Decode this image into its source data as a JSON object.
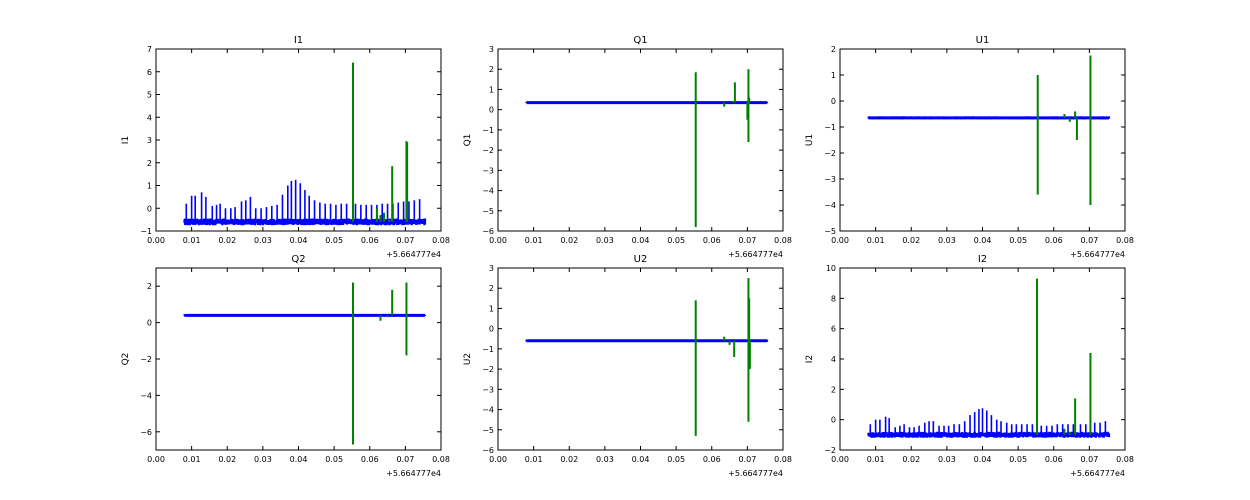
{
  "figure": {
    "background": "#ffffff"
  },
  "colors": {
    "blue": "#0000ff",
    "green": "#007f00",
    "axis": "#000000"
  },
  "chart_data": [
    {
      "type": "line",
      "title": "I1",
      "ylabel": "I1",
      "xlabel": "",
      "offset_label": "+5.664777e4",
      "xlim": [
        0.0,
        0.08
      ],
      "ylim": [
        -1,
        7
      ],
      "xticks": [
        "0.00",
        "0.01",
        "0.02",
        "0.03",
        "0.04",
        "0.05",
        "0.06",
        "0.07",
        "0.08"
      ],
      "yticks": [
        "−1",
        "0",
        "1",
        "2",
        "3",
        "4",
        "5",
        "6",
        "7"
      ],
      "grid": false,
      "series": [
        {
          "color": "#0000ff",
          "baseline": -0.6,
          "band": 0.15,
          "x_range": [
            0.008,
            0.0755
          ],
          "spikes": [
            [
              0.0085,
              0.2
            ],
            [
              0.01,
              0.55
            ],
            [
              0.011,
              0.55
            ],
            [
              0.0128,
              0.7
            ],
            [
              0.014,
              0.5
            ],
            [
              0.0158,
              0.1
            ],
            [
              0.017,
              0.15
            ],
            [
              0.018,
              0.2
            ],
            [
              0.0195,
              0.0
            ],
            [
              0.021,
              0.0
            ],
            [
              0.0222,
              0.05
            ],
            [
              0.024,
              0.3
            ],
            [
              0.0252,
              0.35
            ],
            [
              0.0265,
              0.5
            ],
            [
              0.028,
              0.0
            ],
            [
              0.0295,
              0.0
            ],
            [
              0.031,
              0.05
            ],
            [
              0.0325,
              0.1
            ],
            [
              0.034,
              0.15
            ],
            [
              0.0355,
              0.6
            ],
            [
              0.037,
              1.0
            ],
            [
              0.038,
              1.2
            ],
            [
              0.0392,
              1.25
            ],
            [
              0.0405,
              1.1
            ],
            [
              0.0418,
              0.8
            ],
            [
              0.043,
              0.55
            ],
            [
              0.0445,
              0.35
            ],
            [
              0.046,
              0.25
            ],
            [
              0.0475,
              0.2
            ],
            [
              0.049,
              0.2
            ],
            [
              0.0505,
              0.15
            ],
            [
              0.052,
              0.2
            ],
            [
              0.0535,
              0.2
            ],
            [
              0.056,
              0.2
            ],
            [
              0.0575,
              0.15
            ],
            [
              0.059,
              0.15
            ],
            [
              0.0605,
              0.15
            ],
            [
              0.062,
              0.15
            ],
            [
              0.0635,
              0.2
            ],
            [
              0.065,
              0.2
            ],
            [
              0.0665,
              0.2
            ],
            [
              0.068,
              0.25
            ],
            [
              0.0695,
              0.3
            ],
            [
              0.071,
              0.3
            ],
            [
              0.0725,
              0.35
            ],
            [
              0.074,
              0.4
            ]
          ],
          "dips": []
        },
        {
          "color": "#007f00",
          "spikes": [
            [
              0.0553,
              6.4
            ],
            [
              0.0663,
              1.85
            ],
            [
              0.0703,
              2.95
            ],
            [
              0.0705,
              2.9
            ]
          ],
          "dips": [
            [
              0.063,
              -0.3
            ],
            [
              0.0655,
              -0.5
            ],
            [
              0.07,
              -0.6
            ]
          ],
          "wiggles": [
            [
              0.062,
              0.0
            ],
            [
              0.064,
              -0.2
            ]
          ]
        }
      ]
    },
    {
      "type": "line",
      "title": "Q1",
      "ylabel": "Q1",
      "xlabel": "",
      "offset_label": "+5.664777e4",
      "xlim": [
        0.0,
        0.08
      ],
      "ylim": [
        -6,
        3
      ],
      "xticks": [
        "0.00",
        "0.01",
        "0.02",
        "0.03",
        "0.04",
        "0.05",
        "0.06",
        "0.07",
        "0.08"
      ],
      "yticks": [
        "−6",
        "−5",
        "−4",
        "−3",
        "−2",
        "−1",
        "0",
        "1",
        "2",
        "3"
      ],
      "grid": false,
      "series": [
        {
          "color": "#0000ff",
          "baseline": 0.35,
          "band": 0.06,
          "x_range": [
            0.008,
            0.0755
          ],
          "spikes": [],
          "dips": []
        },
        {
          "color": "#007f00",
          "spikes": [
            [
              0.0555,
              1.85
            ],
            [
              0.0665,
              1.35
            ],
            [
              0.0703,
              2.0
            ],
            [
              0.0705,
              0.6
            ]
          ],
          "dips": [
            [
              0.0555,
              -5.8
            ],
            [
              0.0703,
              -1.6
            ],
            [
              0.07,
              -0.5
            ]
          ],
          "wiggles": [
            [
              0.0635,
              0.15
            ],
            [
              0.066,
              0.4
            ]
          ]
        }
      ]
    },
    {
      "type": "line",
      "title": "U1",
      "ylabel": "U1",
      "xlabel": "",
      "offset_label": "+5.664777e4",
      "xlim": [
        0.0,
        0.08
      ],
      "ylim": [
        -5,
        2
      ],
      "xticks": [
        "0.00",
        "0.01",
        "0.02",
        "0.03",
        "0.04",
        "0.05",
        "0.06",
        "0.07",
        "0.08"
      ],
      "yticks": [
        "−5",
        "−4",
        "−3",
        "−2",
        "−1",
        "0",
        "1",
        "2"
      ],
      "grid": false,
      "series": [
        {
          "color": "#0000ff",
          "baseline": -0.65,
          "band": 0.06,
          "x_range": [
            0.008,
            0.0755
          ],
          "spikes": [],
          "dips": []
        },
        {
          "color": "#007f00",
          "spikes": [
            [
              0.0555,
              1.0
            ],
            [
              0.0703,
              1.75
            ]
          ],
          "dips": [
            [
              0.0555,
              -3.6
            ],
            [
              0.0665,
              -1.5
            ],
            [
              0.0703,
              -4.0
            ]
          ],
          "wiggles": [
            [
              0.063,
              -0.5
            ],
            [
              0.0645,
              -0.8
            ],
            [
              0.066,
              -0.4
            ]
          ]
        }
      ]
    },
    {
      "type": "line",
      "title": "Q2",
      "ylabel": "Q2",
      "xlabel": "",
      "offset_label": "+5.664777e4",
      "xlim": [
        0.0,
        0.08
      ],
      "ylim": [
        -7,
        3
      ],
      "xticks": [
        "0.00",
        "0.01",
        "0.02",
        "0.03",
        "0.04",
        "0.05",
        "0.06",
        "0.07",
        "0.08"
      ],
      "yticks": [
        "−6",
        "−4",
        "−2",
        "0",
        "2"
      ],
      "ytick_values": [
        -6,
        -4,
        -2,
        0,
        2
      ],
      "grid": false,
      "series": [
        {
          "color": "#0000ff",
          "baseline": 0.4,
          "band": 0.06,
          "x_range": [
            0.008,
            0.0755
          ],
          "spikes": [],
          "dips": []
        },
        {
          "color": "#007f00",
          "spikes": [
            [
              0.0553,
              2.2
            ],
            [
              0.0663,
              1.8
            ],
            [
              0.0703,
              2.2
            ]
          ],
          "dips": [
            [
              0.0553,
              -6.7
            ],
            [
              0.0703,
              -1.8
            ]
          ],
          "wiggles": [
            [
              0.063,
              0.1
            ],
            [
              0.065,
              0.3
            ]
          ]
        }
      ]
    },
    {
      "type": "line",
      "title": "U2",
      "ylabel": "U2",
      "xlabel": "",
      "offset_label": "+5.664777e4",
      "xlim": [
        0.0,
        0.08
      ],
      "ylim": [
        -6,
        3
      ],
      "xticks": [
        "0.00",
        "0.01",
        "0.02",
        "0.03",
        "0.04",
        "0.05",
        "0.06",
        "0.07",
        "0.08"
      ],
      "yticks": [
        "−6",
        "−5",
        "−4",
        "−3",
        "−2",
        "−1",
        "0",
        "1",
        "2",
        "3"
      ],
      "grid": false,
      "series": [
        {
          "color": "#0000ff",
          "baseline": -0.6,
          "band": 0.06,
          "x_range": [
            0.008,
            0.0755
          ],
          "spikes": [],
          "dips": []
        },
        {
          "color": "#007f00",
          "spikes": [
            [
              0.0555,
              1.4
            ],
            [
              0.0703,
              2.5
            ],
            [
              0.0705,
              1.5
            ]
          ],
          "dips": [
            [
              0.0555,
              -5.3
            ],
            [
              0.0663,
              -1.4
            ],
            [
              0.0703,
              -4.6
            ],
            [
              0.0707,
              -2.0
            ]
          ],
          "wiggles": [
            [
              0.0635,
              -0.4
            ],
            [
              0.065,
              -0.8
            ]
          ]
        }
      ]
    },
    {
      "type": "line",
      "title": "I2",
      "ylabel": "I2",
      "xlabel": "",
      "offset_label": "+5.664777e4",
      "xlim": [
        0.0,
        0.08
      ],
      "ylim": [
        -2,
        10
      ],
      "xticks": [
        "0.00",
        "0.01",
        "0.02",
        "0.03",
        "0.04",
        "0.05",
        "0.06",
        "0.07",
        "0.08"
      ],
      "yticks": [
        "−2",
        "0",
        "2",
        "4",
        "6",
        "8",
        "10"
      ],
      "ytick_values": [
        -2,
        0,
        2,
        4,
        6,
        8,
        10
      ],
      "grid": false,
      "series": [
        {
          "color": "#0000ff",
          "baseline": -1.0,
          "band": 0.2,
          "x_range": [
            0.008,
            0.0755
          ],
          "spikes": [
            [
              0.0085,
              -0.3
            ],
            [
              0.01,
              0.0
            ],
            [
              0.0112,
              0.0
            ],
            [
              0.0128,
              0.2
            ],
            [
              0.0138,
              0.1
            ],
            [
              0.0155,
              -0.5
            ],
            [
              0.0168,
              -0.4
            ],
            [
              0.018,
              -0.3
            ],
            [
              0.0195,
              -0.5
            ],
            [
              0.0208,
              -0.5
            ],
            [
              0.0222,
              -0.4
            ],
            [
              0.0238,
              -0.2
            ],
            [
              0.025,
              -0.1
            ],
            [
              0.0262,
              -0.1
            ],
            [
              0.0278,
              -0.4
            ],
            [
              0.0292,
              -0.4
            ],
            [
              0.0305,
              -0.4
            ],
            [
              0.032,
              -0.3
            ],
            [
              0.0335,
              -0.3
            ],
            [
              0.035,
              -0.1
            ],
            [
              0.0365,
              0.3
            ],
            [
              0.0378,
              0.5
            ],
            [
              0.039,
              0.7
            ],
            [
              0.04,
              0.75
            ],
            [
              0.0412,
              0.6
            ],
            [
              0.0425,
              0.3
            ],
            [
              0.044,
              0.0
            ],
            [
              0.0452,
              -0.1
            ],
            [
              0.0468,
              -0.2
            ],
            [
              0.0482,
              -0.3
            ],
            [
              0.0495,
              -0.3
            ],
            [
              0.051,
              -0.3
            ],
            [
              0.0525,
              -0.3
            ],
            [
              0.054,
              -0.3
            ],
            [
              0.0565,
              -0.4
            ],
            [
              0.058,
              -0.4
            ],
            [
              0.0595,
              -0.4
            ],
            [
              0.061,
              -0.3
            ],
            [
              0.0625,
              -0.3
            ],
            [
              0.064,
              -0.3
            ],
            [
              0.0655,
              -0.3
            ],
            [
              0.0675,
              -0.3
            ],
            [
              0.069,
              -0.3
            ],
            [
              0.0715,
              -0.2
            ],
            [
              0.073,
              -0.2
            ],
            [
              0.0745,
              -0.1
            ]
          ],
          "dips": []
        },
        {
          "color": "#007f00",
          "spikes": [
            [
              0.0553,
              9.3
            ],
            [
              0.066,
              1.4
            ],
            [
              0.0703,
              4.4
            ]
          ],
          "dips": [
            [
              0.0655,
              -1.0
            ],
            [
              0.07,
              -1.0
            ]
          ],
          "wiggles": [
            [
              0.063,
              -0.6
            ],
            [
              0.0645,
              -0.8
            ]
          ]
        }
      ]
    }
  ]
}
